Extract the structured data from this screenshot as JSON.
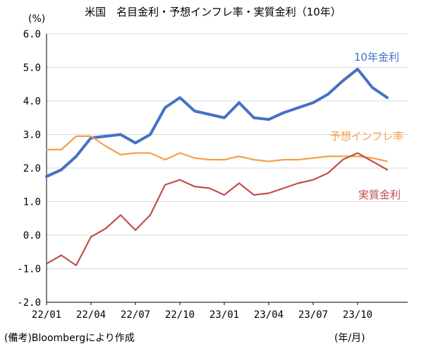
{
  "chart_data": {
    "type": "line",
    "title": "米国　名目金利・予想インフレ率・実質金利（10年）",
    "ylabel": "(%)",
    "xlabel": "(年/月)",
    "note": "(備考)Bloombergにより作成",
    "ylim": [
      -2.0,
      6.0
    ],
    "yticks": [
      "6.0",
      "5.0",
      "4.0",
      "3.0",
      "2.0",
      "1.0",
      "0.0",
      "-1.0",
      "-2.0"
    ],
    "xticks": [
      "22/01",
      "22/04",
      "22/07",
      "22/10",
      "23/01",
      "23/04",
      "23/07",
      "23/10"
    ],
    "x": [
      "22/01",
      "22/02",
      "22/03",
      "22/04",
      "22/05",
      "22/06",
      "22/07",
      "22/08",
      "22/09",
      "22/10",
      "22/11",
      "22/12",
      "23/01",
      "23/02",
      "23/03",
      "23/04",
      "23/05",
      "23/06",
      "23/07",
      "23/08",
      "23/09",
      "23/10",
      "23/11",
      "23/12"
    ],
    "series": [
      {
        "name": "10年金利",
        "color": "#4472C4",
        "values": [
          1.75,
          1.95,
          2.35,
          2.9,
          2.95,
          3.0,
          2.75,
          3.0,
          3.8,
          4.1,
          3.7,
          3.6,
          3.5,
          3.95,
          3.5,
          3.45,
          3.65,
          3.8,
          3.95,
          4.2,
          4.6,
          4.95,
          4.4,
          4.1
        ]
      },
      {
        "name": "予想インフレ率",
        "color": "#F4A04A",
        "values": [
          2.55,
          2.55,
          2.95,
          2.95,
          2.65,
          2.4,
          2.45,
          2.45,
          2.25,
          2.45,
          2.3,
          2.25,
          2.25,
          2.35,
          2.25,
          2.2,
          2.25,
          2.25,
          2.3,
          2.35,
          2.35,
          2.35,
          2.3,
          2.2
        ]
      },
      {
        "name": "実質金利",
        "color": "#C0504D",
        "values": [
          -0.85,
          -0.6,
          -0.9,
          -0.05,
          0.2,
          0.6,
          0.15,
          0.6,
          1.5,
          1.65,
          1.45,
          1.4,
          1.2,
          1.55,
          1.2,
          1.25,
          1.4,
          1.55,
          1.65,
          1.85,
          2.25,
          2.45,
          2.2,
          1.95
        ]
      }
    ]
  },
  "footnote": "(備考)Bloombergにより作成"
}
